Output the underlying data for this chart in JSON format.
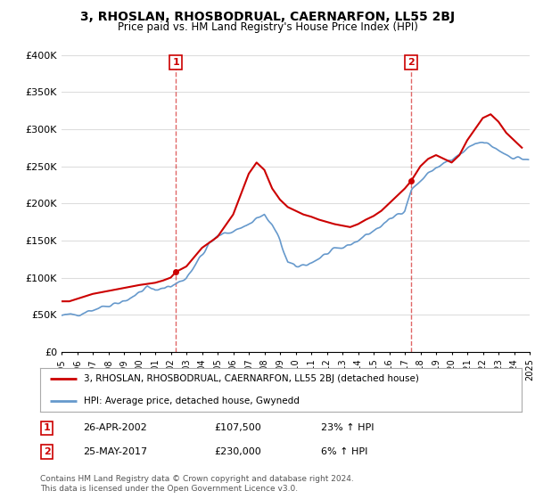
{
  "title": "3, RHOSLAN, RHOSBODRUAL, CAERNARFON, LL55 2BJ",
  "subtitle": "Price paid vs. HM Land Registry's House Price Index (HPI)",
  "legend_line1": "3, RHOSLAN, RHOSBODRUAL, CAERNARFON, LL55 2BJ (detached house)",
  "legend_line2": "HPI: Average price, detached house, Gwynedd",
  "transaction1_label": "1",
  "transaction1_date": "26-APR-2002",
  "transaction1_price": "£107,500",
  "transaction1_hpi": "23% ↑ HPI",
  "transaction2_label": "2",
  "transaction2_date": "25-MAY-2017",
  "transaction2_price": "£230,000",
  "transaction2_hpi": "6% ↑ HPI",
  "footer": "Contains HM Land Registry data © Crown copyright and database right 2024.\nThis data is licensed under the Open Government Licence v3.0.",
  "xmin": 1995,
  "xmax": 2025,
  "ymin": 0,
  "ymax": 400000,
  "yticks": [
    0,
    50000,
    100000,
    150000,
    200000,
    250000,
    300000,
    350000,
    400000
  ],
  "ytick_labels": [
    "£0",
    "£50K",
    "£100K",
    "£150K",
    "£200K",
    "£250K",
    "£300K",
    "£350K",
    "£400K"
  ],
  "xtick_years": [
    1995,
    1996,
    1997,
    1998,
    1999,
    2000,
    2001,
    2002,
    2003,
    2004,
    2005,
    2006,
    2007,
    2008,
    2009,
    2010,
    2011,
    2012,
    2013,
    2014,
    2015,
    2016,
    2017,
    2018,
    2019,
    2020,
    2021,
    2022,
    2023,
    2024,
    2025
  ],
  "hpi_color": "#6699cc",
  "price_color": "#cc0000",
  "transaction_vline_color": "#cc0000",
  "grid_color": "#dddddd",
  "background_color": "#ffffff",
  "vline1_x": 2002.32,
  "vline2_x": 2017.4,
  "price_x_line": [
    1995.0,
    1995.5,
    1997.0,
    1998.0,
    1999.0,
    2000.0,
    2001.0,
    2001.5,
    2002.0,
    2002.32,
    2003.0,
    2004.0,
    2005.0,
    2006.0,
    2007.0,
    2007.5,
    2008.0,
    2008.5,
    2009.0,
    2009.5,
    2010.0,
    2010.5,
    2011.0,
    2011.5,
    2012.0,
    2012.5,
    2013.0,
    2013.5,
    2014.0,
    2014.5,
    2015.0,
    2015.5,
    2016.0,
    2016.5,
    2017.0,
    2017.4,
    2018.0,
    2018.5,
    2019.0,
    2019.5,
    2020.0,
    2020.5,
    2021.0,
    2021.5,
    2022.0,
    2022.5,
    2023.0,
    2023.5,
    2024.0,
    2024.5
  ],
  "price_y_line": [
    68000,
    68000,
    78000,
    82000,
    86000,
    90000,
    93000,
    96000,
    100000,
    107500,
    115000,
    140000,
    155000,
    185000,
    240000,
    255000,
    245000,
    220000,
    205000,
    195000,
    190000,
    185000,
    182000,
    178000,
    175000,
    172000,
    170000,
    168000,
    172000,
    178000,
    183000,
    190000,
    200000,
    210000,
    220000,
    230000,
    250000,
    260000,
    265000,
    260000,
    255000,
    265000,
    285000,
    300000,
    315000,
    320000,
    310000,
    295000,
    285000,
    275000
  ]
}
